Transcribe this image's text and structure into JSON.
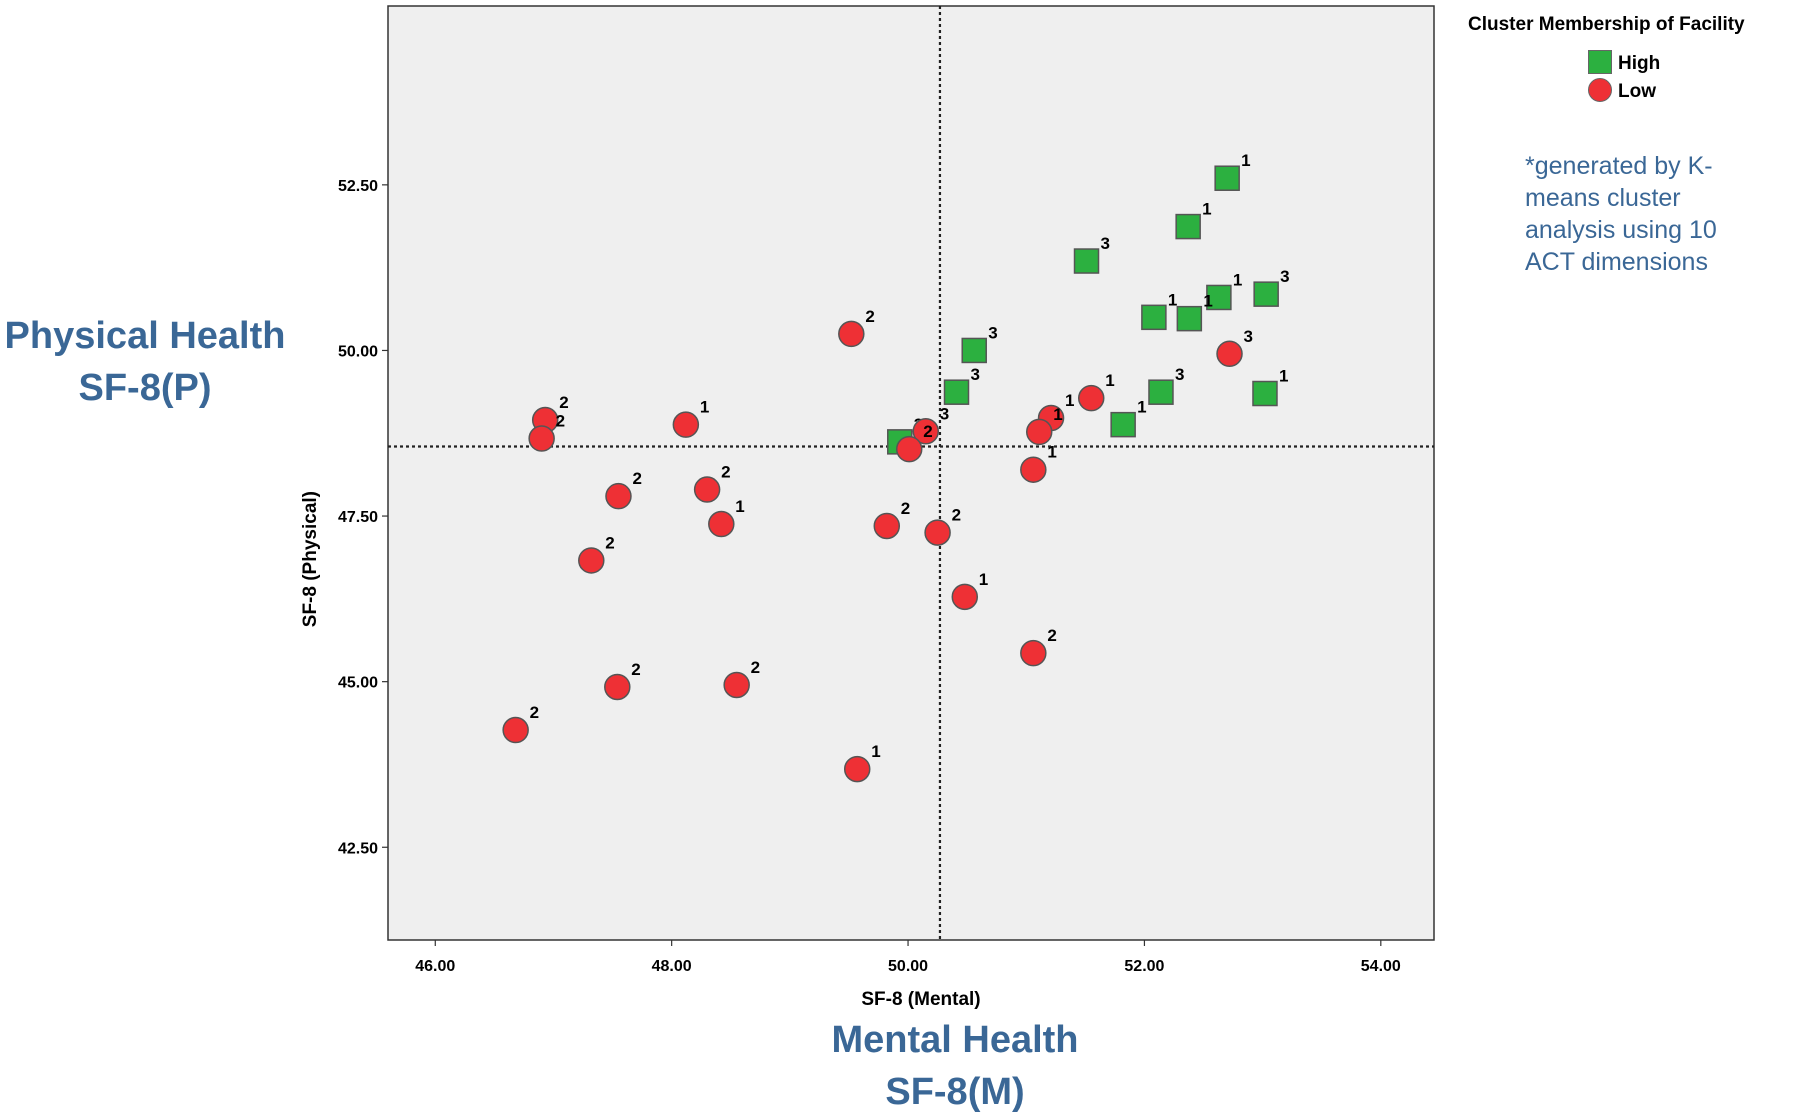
{
  "chart_data": {
    "type": "scatter",
    "xlabel": "SF-8 (Mental)",
    "ylabel": "SF-8 (Physical)",
    "xlim": [
      45.6,
      54.45
    ],
    "ylim": [
      41.1,
      55.2
    ],
    "x_ticks": [
      "46.00",
      "48.00",
      "50.00",
      "52.00",
      "54.00"
    ],
    "y_ticks": [
      "42.50",
      "45.00",
      "47.50",
      "50.00",
      "52.50"
    ],
    "reference_lines": {
      "x": 50.27,
      "y": 48.55
    },
    "grid": false,
    "legend": {
      "title": "Cluster Membership of Facility",
      "placement": "top-right"
    },
    "series": [
      {
        "name": "High",
        "marker": "square",
        "color": "#2cb040",
        "points": [
          {
            "x": 52.7,
            "y": 52.6,
            "label": "1"
          },
          {
            "x": 52.37,
            "y": 51.87,
            "label": "1"
          },
          {
            "x": 51.51,
            "y": 51.35,
            "label": "3"
          },
          {
            "x": 53.03,
            "y": 50.85,
            "label": "3"
          },
          {
            "x": 52.63,
            "y": 50.8,
            "label": "1"
          },
          {
            "x": 52.08,
            "y": 50.5,
            "label": "1"
          },
          {
            "x": 52.38,
            "y": 50.48,
            "label": "1"
          },
          {
            "x": 50.56,
            "y": 50.0,
            "label": "3"
          },
          {
            "x": 50.41,
            "y": 49.37,
            "label": "3"
          },
          {
            "x": 52.14,
            "y": 49.37,
            "label": "3"
          },
          {
            "x": 53.02,
            "y": 49.35,
            "label": "1"
          },
          {
            "x": 51.82,
            "y": 48.88,
            "label": "1"
          },
          {
            "x": 49.93,
            "y": 48.62,
            "label": "3"
          }
        ]
      },
      {
        "name": "Low",
        "marker": "circle",
        "color": "#ee3035",
        "points": [
          {
            "x": 49.52,
            "y": 50.25,
            "label": "2"
          },
          {
            "x": 52.72,
            "y": 49.95,
            "label": "3"
          },
          {
            "x": 46.93,
            "y": 48.95,
            "label": "2"
          },
          {
            "x": 48.12,
            "y": 48.88,
            "label": "1"
          },
          {
            "x": 46.9,
            "y": 48.67,
            "label": "2"
          },
          {
            "x": 51.55,
            "y": 49.28,
            "label": "1"
          },
          {
            "x": 51.21,
            "y": 48.98,
            "label": "1"
          },
          {
            "x": 51.11,
            "y": 48.77,
            "label": "1"
          },
          {
            "x": 50.15,
            "y": 48.78,
            "label": "3"
          },
          {
            "x": 50.01,
            "y": 48.51,
            "label": "2"
          },
          {
            "x": 51.06,
            "y": 48.2,
            "label": "1"
          },
          {
            "x": 48.3,
            "y": 47.9,
            "label": "2"
          },
          {
            "x": 47.55,
            "y": 47.8,
            "label": "2"
          },
          {
            "x": 48.42,
            "y": 47.38,
            "label": "1"
          },
          {
            "x": 49.82,
            "y": 47.35,
            "label": "2"
          },
          {
            "x": 50.25,
            "y": 47.25,
            "label": "2"
          },
          {
            "x": 47.32,
            "y": 46.83,
            "label": "2"
          },
          {
            "x": 50.48,
            "y": 46.28,
            "label": "1"
          },
          {
            "x": 51.06,
            "y": 45.43,
            "label": "2"
          },
          {
            "x": 47.54,
            "y": 44.92,
            "label": "2"
          },
          {
            "x": 48.55,
            "y": 44.95,
            "label": "2"
          },
          {
            "x": 46.68,
            "y": 44.27,
            "label": "2"
          },
          {
            "x": 49.57,
            "y": 43.68,
            "label": "1"
          }
        ]
      }
    ]
  },
  "annotations": {
    "y_big_label": [
      "Physical Health",
      "SF-8(P)"
    ],
    "x_big_label": [
      "Mental Health",
      "SF-8(M)"
    ],
    "note": "*generated by K-means cluster analysis using 10 ACT dimensions"
  },
  "colors": {
    "accent": "#3a6796",
    "plot_bg": "#efefef"
  }
}
